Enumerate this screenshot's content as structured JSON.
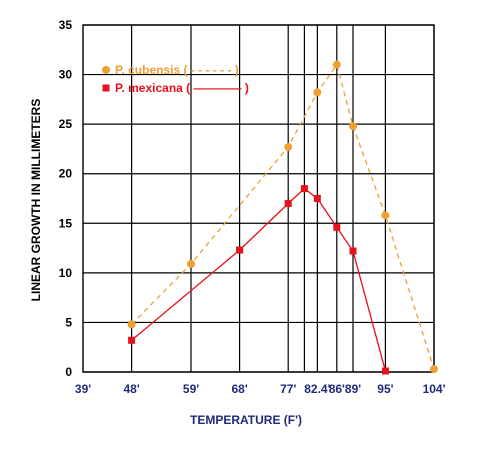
{
  "chart_data": {
    "type": "line",
    "xlabel": "TEMPERATURE (F')",
    "ylabel": "LINEAR GROWTH IN MILLIMETERS",
    "x_ticks": [
      "39'",
      "48'",
      "59'",
      "68'",
      "77'",
      "82.4'",
      "86'",
      "89'",
      "95'",
      "104'"
    ],
    "x_tick_values": [
      39,
      48,
      59,
      68,
      77,
      82.4,
      86,
      89,
      95,
      104
    ],
    "x_gridlines": [
      48,
      59,
      68,
      77,
      80,
      82.4,
      86,
      89,
      95,
      104
    ],
    "xlim": [
      39,
      104
    ],
    "y_ticks": [
      0,
      5,
      10,
      15,
      20,
      25,
      30,
      35
    ],
    "ylim": [
      0,
      35
    ],
    "grid": true,
    "legend_position": "top-left",
    "series": [
      {
        "name": "P. cubensis ( - - - - - - )",
        "color": "#f0a030",
        "line_style": "dashed",
        "marker": "circle",
        "points": [
          {
            "x": 48,
            "y": 4.8
          },
          {
            "x": 59,
            "y": 10.9
          },
          {
            "x": 77,
            "y": 22.7
          },
          {
            "x": 82.4,
            "y": 28.2
          },
          {
            "x": 86,
            "y": 31.0
          },
          {
            "x": 89,
            "y": 24.8
          },
          {
            "x": 95,
            "y": 15.8
          },
          {
            "x": 104,
            "y": 0.3
          }
        ]
      },
      {
        "name": "P. mexicana ( ———— )",
        "color": "#e8101a",
        "line_style": "solid",
        "marker": "square",
        "points": [
          {
            "x": 48,
            "y": 3.2
          },
          {
            "x": 68,
            "y": 12.3
          },
          {
            "x": 77,
            "y": 17.0
          },
          {
            "x": 80,
            "y": 18.5
          },
          {
            "x": 82.4,
            "y": 17.5
          },
          {
            "x": 86,
            "y": 14.6
          },
          {
            "x": 89,
            "y": 12.2
          },
          {
            "x": 95,
            "y": 0.1
          }
        ]
      }
    ]
  }
}
